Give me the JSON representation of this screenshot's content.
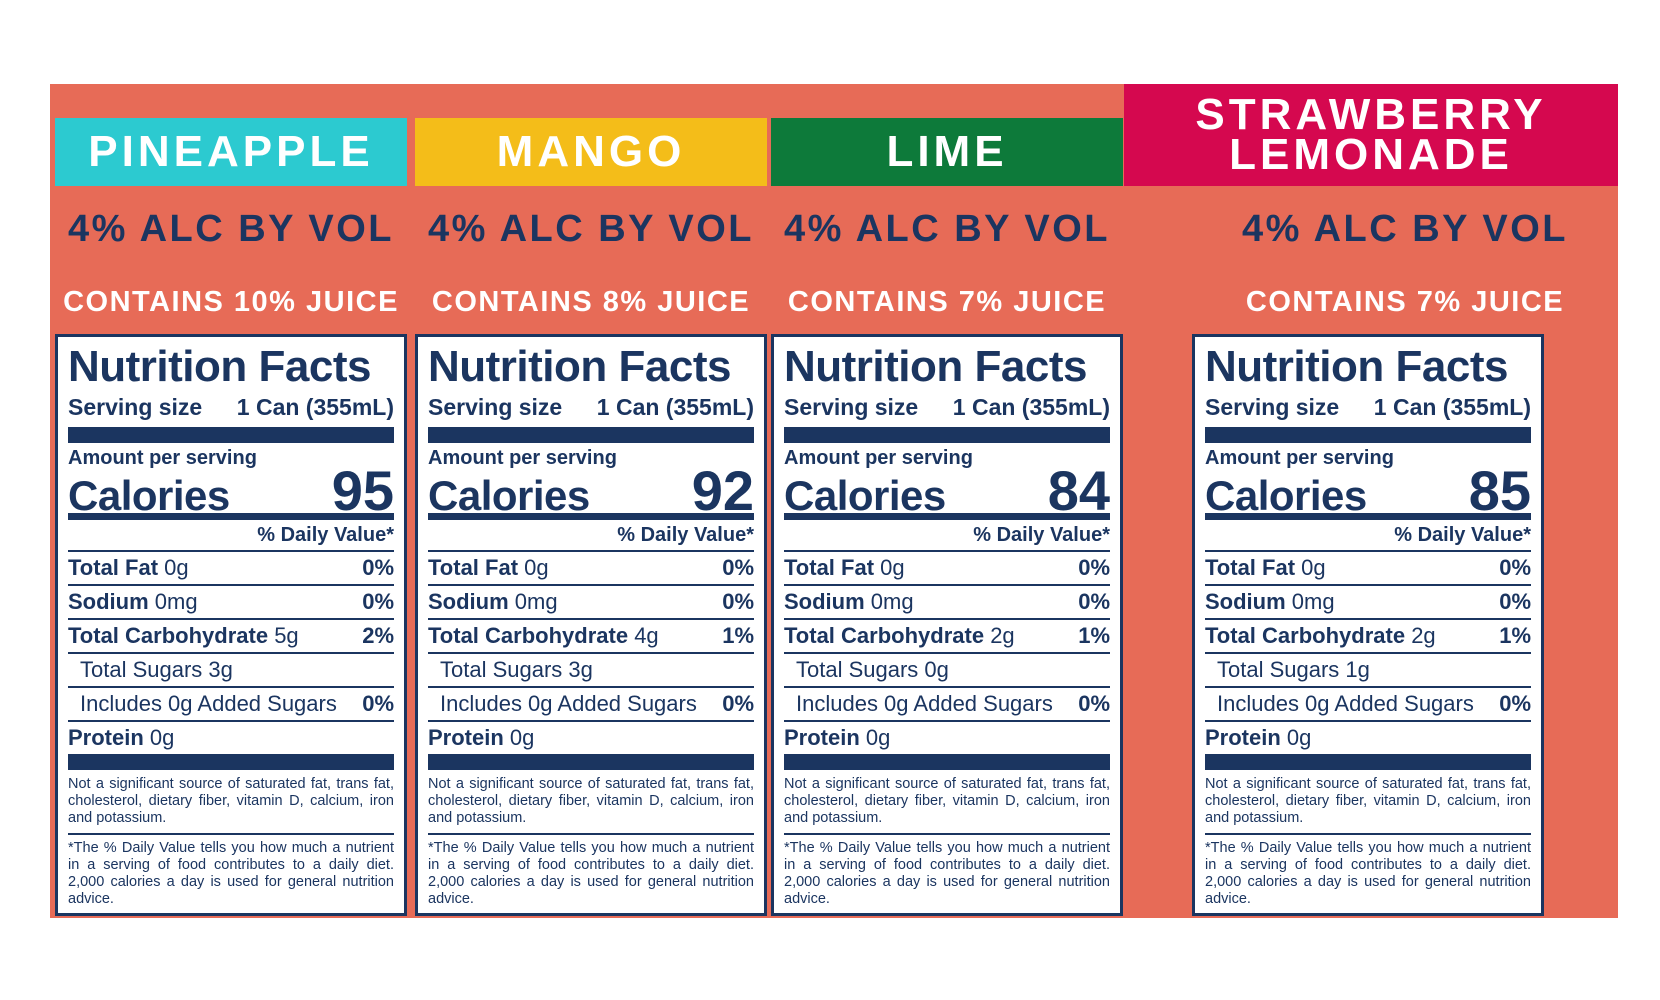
{
  "colors": {
    "background": "#e76b57",
    "ink": "#1b3560"
  },
  "labels": [
    {
      "flavor": "PINEAPPLE",
      "flavor_color": "#2ccad0",
      "abv": "4% ALC BY VOL",
      "juice": "CONTAINS 10% JUICE",
      "title": "Nutrition Facts",
      "serving_label": "Serving size",
      "serving_value": "1 Can (355mL)",
      "amount_label": "Amount per serving",
      "calories_label": "Calories",
      "calories": "95",
      "dv_header": "% Daily Value*",
      "fat_label": "Total Fat",
      "fat_amount": "0g",
      "fat_dv": "0%",
      "sodium_label": "Sodium",
      "sodium_amount": "0mg",
      "sodium_dv": "0%",
      "carb_label": "Total Carbohydrate",
      "carb_amount": "5g",
      "carb_dv": "2%",
      "sugars": "Total Sugars 3g",
      "added_sugars": "Includes 0g Added Sugars",
      "added_dv": "0%",
      "protein_label": "Protein",
      "protein_amount": "0g",
      "footnote1": "Not a significant source of saturated fat, trans fat, cholesterol, dietary fiber, vitamin D, calcium, iron and potassium.",
      "footnote2": "*The % Daily Value tells you how much a nutrient in a serving of food contributes to a daily diet. 2,000 calories a day is used for general nutrition advice."
    },
    {
      "flavor": "MANGO",
      "flavor_color": "#f4bd19",
      "abv": "4% ALC BY VOL",
      "juice": "CONTAINS 8% JUICE",
      "title": "Nutrition Facts",
      "serving_label": "Serving size",
      "serving_value": "1 Can (355mL)",
      "amount_label": "Amount per serving",
      "calories_label": "Calories",
      "calories": "92",
      "dv_header": "% Daily Value*",
      "fat_label": "Total Fat",
      "fat_amount": "0g",
      "fat_dv": "0%",
      "sodium_label": "Sodium",
      "sodium_amount": "0mg",
      "sodium_dv": "0%",
      "carb_label": "Total Carbohydrate",
      "carb_amount": "4g",
      "carb_dv": "1%",
      "sugars": "Total Sugars 3g",
      "added_sugars": "Includes 0g Added Sugars",
      "added_dv": "0%",
      "protein_label": "Protein",
      "protein_amount": "0g",
      "footnote1": "Not a significant source of saturated fat, trans fat, cholesterol, dietary fiber, vitamin D, calcium, iron and potassium.",
      "footnote2": "*The % Daily Value tells you how much a nutrient in a serving of food contributes to a daily diet. 2,000 calories a day is used for general nutrition advice."
    },
    {
      "flavor": "LIME",
      "flavor_color": "#0d7a3a",
      "abv": "4% ALC BY VOL",
      "juice": "CONTAINS 7% JUICE",
      "title": "Nutrition Facts",
      "serving_label": "Serving size",
      "serving_value": "1 Can (355mL)",
      "amount_label": "Amount per serving",
      "calories_label": "Calories",
      "calories": "84",
      "dv_header": "% Daily Value*",
      "fat_label": "Total Fat",
      "fat_amount": "0g",
      "fat_dv": "0%",
      "sodium_label": "Sodium",
      "sodium_amount": "0mg",
      "sodium_dv": "0%",
      "carb_label": "Total Carbohydrate",
      "carb_amount": "2g",
      "carb_dv": "1%",
      "sugars": "Total Sugars 0g",
      "added_sugars": "Includes 0g Added Sugars",
      "added_dv": "0%",
      "protein_label": "Protein",
      "protein_amount": "0g",
      "footnote1": "Not a significant source of saturated fat, trans fat, cholesterol, dietary fiber, vitamin D, calcium, iron and potassium.",
      "footnote2": "*The % Daily Value tells you how much a nutrient in a serving of food contributes to a daily diet. 2,000 calories a day is used for general nutrition advice."
    },
    {
      "flavor": "STRAWBERRY\nLEMONADE",
      "flavor_color": "#d5084f",
      "abv": "4% ALC BY VOL",
      "juice": "CONTAINS 7% JUICE",
      "title": "Nutrition Facts",
      "serving_label": "Serving size",
      "serving_value": "1 Can (355mL)",
      "amount_label": "Amount per serving",
      "calories_label": "Calories",
      "calories": "85",
      "dv_header": "% Daily Value*",
      "fat_label": "Total Fat",
      "fat_amount": "0g",
      "fat_dv": "0%",
      "sodium_label": "Sodium",
      "sodium_amount": "0mg",
      "sodium_dv": "0%",
      "carb_label": "Total Carbohydrate",
      "carb_amount": "2g",
      "carb_dv": "1%",
      "sugars": "Total Sugars 1g",
      "added_sugars": "Includes 0g Added Sugars",
      "added_dv": "0%",
      "protein_label": "Protein",
      "protein_amount": "0g",
      "footnote1": "Not a significant source of saturated fat, trans fat, cholesterol, dietary fiber, vitamin D, calcium, iron and potassium.",
      "footnote2": "*The % Daily Value tells you how much a nutrient in a serving of food contributes to a daily diet. 2,000 calories a day is used for general nutrition advice."
    }
  ]
}
